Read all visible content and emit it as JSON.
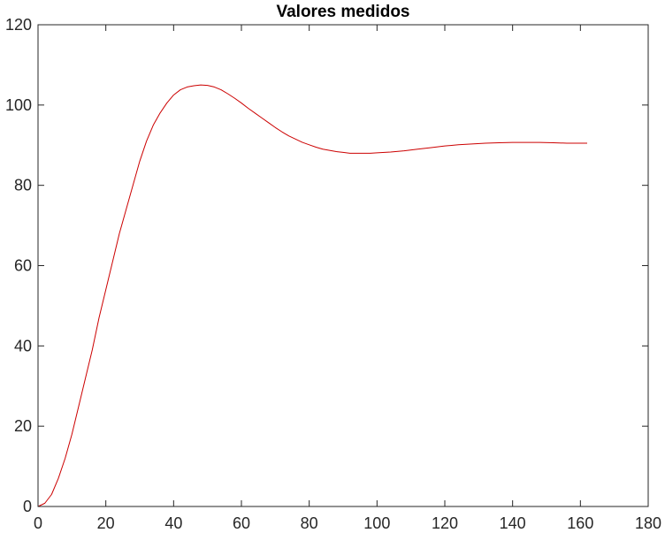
{
  "chart_data": {
    "type": "line",
    "title": "Valores medidos",
    "xlabel": "",
    "ylabel": "",
    "xlim": [
      0,
      180
    ],
    "ylim": [
      0,
      120
    ],
    "xticks": [
      0,
      20,
      40,
      60,
      80,
      100,
      120,
      140,
      160,
      180
    ],
    "yticks": [
      0,
      20,
      40,
      60,
      80,
      100,
      120
    ],
    "xtick_labels": [
      "0",
      "20",
      "40",
      "60",
      "80",
      "100",
      "120",
      "140",
      "160",
      "180"
    ],
    "ytick_labels": [
      "0",
      "20",
      "40",
      "60",
      "80",
      "100",
      "120"
    ],
    "grid": false,
    "line_color": "#cc0000",
    "axis_color": "#262626",
    "series": [
      {
        "color": "#cc0000",
        "x": [
          0,
          2,
          4,
          6,
          8,
          10,
          12,
          14,
          16,
          18,
          20,
          22,
          24,
          26,
          28,
          30,
          32,
          34,
          36,
          38,
          40,
          42,
          44,
          46,
          48,
          50,
          52,
          54,
          56,
          58,
          60,
          62,
          64,
          66,
          68,
          70,
          72,
          74,
          76,
          78,
          80,
          82,
          84,
          86,
          88,
          90,
          92,
          94,
          96,
          98,
          100,
          104,
          108,
          112,
          116,
          120,
          124,
          128,
          132,
          136,
          140,
          144,
          148,
          152,
          156,
          160,
          162
        ],
        "y": [
          0,
          0.8,
          3,
          7,
          12,
          18,
          25,
          32,
          39,
          47,
          54,
          61,
          68,
          74,
          80,
          86,
          91,
          95,
          98,
          100.5,
          102.5,
          103.8,
          104.5,
          104.8,
          105,
          104.9,
          104.5,
          103.8,
          102.8,
          101.7,
          100.5,
          99.2,
          98,
          96.8,
          95.6,
          94.4,
          93.3,
          92.3,
          91.5,
          90.7,
          90.1,
          89.5,
          89,
          88.7,
          88.4,
          88.2,
          88,
          88,
          88,
          88,
          88.1,
          88.3,
          88.6,
          89,
          89.4,
          89.8,
          90.1,
          90.3,
          90.5,
          90.6,
          90.7,
          90.7,
          90.7,
          90.6,
          90.5,
          90.5,
          90.5
        ]
      }
    ]
  }
}
